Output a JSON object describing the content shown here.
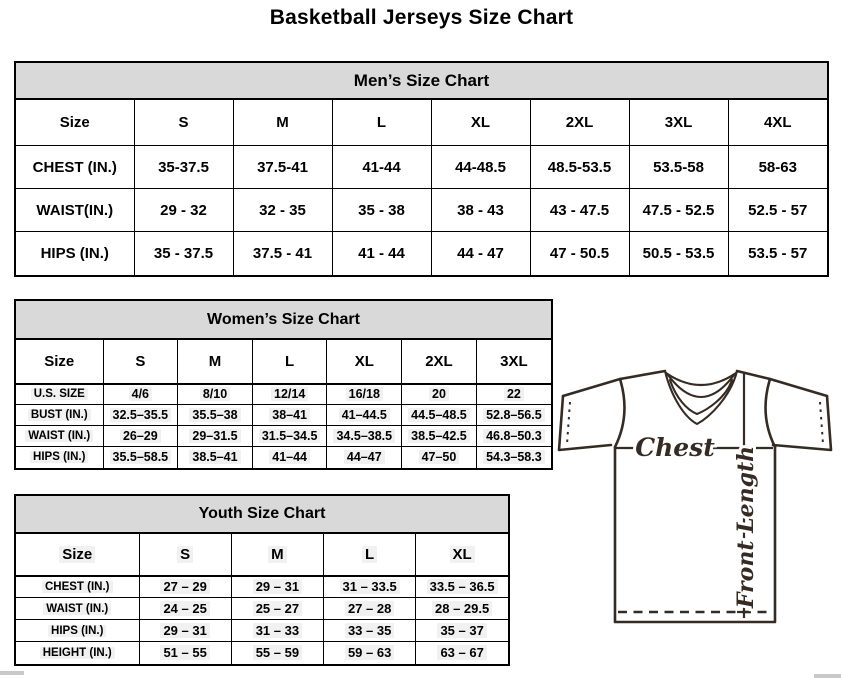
{
  "page": {
    "title": "Basketball Jerseys Size Chart"
  },
  "mens": {
    "title": "Men’s Size Chart",
    "columns": [
      "Size",
      "S",
      "M",
      "L",
      "XL",
      "2XL",
      "3XL",
      "4XL"
    ],
    "rows": [
      {
        "label": "CHEST (IN.)",
        "values": [
          "35-37.5",
          "37.5-41",
          "41-44",
          "44-48.5",
          "48.5-53.5",
          "53.5-58",
          "58-63"
        ]
      },
      {
        "label": "WAIST(IN.)",
        "values": [
          "29 - 32",
          "32 - 35",
          "35 - 38",
          "38 - 43",
          "43 - 47.5",
          "47.5 - 52.5",
          "52.5 - 57"
        ]
      },
      {
        "label": "HIPS (IN.)",
        "values": [
          "35 - 37.5",
          "37.5 - 41",
          "41 - 44",
          "44 - 47",
          "47 - 50.5",
          "50.5 - 53.5",
          "53.5 - 57"
        ]
      }
    ]
  },
  "womens": {
    "title": "Women’s Size Chart",
    "columns": [
      "Size",
      "S",
      "M",
      "L",
      "XL",
      "2XL",
      "3XL"
    ],
    "rows": [
      {
        "label": "U.S. SIZE",
        "values": [
          "4/6",
          "8/10",
          "12/14",
          "16/18",
          "20",
          "22"
        ]
      },
      {
        "label": "BUST (IN.)",
        "values": [
          "32.5–35.5",
          "35.5–38",
          "38–41",
          "41–44.5",
          "44.5–48.5",
          "52.8–56.5"
        ]
      },
      {
        "label": "WAIST (IN.)",
        "values": [
          "26–29",
          "29–31.5",
          "31.5–34.5",
          "34.5–38.5",
          "38.5–42.5",
          "46.8–50.3"
        ]
      },
      {
        "label": "HIPS (IN.)",
        "values": [
          "35.5–58.5",
          "38.5–41",
          "41–44",
          "44–47",
          "47–50",
          "54.3–58.3"
        ]
      }
    ]
  },
  "youth": {
    "title": "Youth Size Chart",
    "columns": [
      "Size",
      "S",
      "M",
      "L",
      "XL"
    ],
    "rows": [
      {
        "label": "CHEST (IN.)",
        "values": [
          "27 – 29",
          "29 – 31",
          "31 – 33.5",
          "33.5 – 36.5"
        ]
      },
      {
        "label": "WAIST (IN.)",
        "values": [
          "24 – 25",
          "25 – 27",
          "27 – 28",
          "28 – 29.5"
        ]
      },
      {
        "label": "HIPS (IN.)",
        "values": [
          "29 – 31",
          "31 – 33",
          "33 – 35",
          "35 – 37"
        ]
      },
      {
        "label": "HEIGHT (IN.)",
        "values": [
          "51 – 55",
          "55 – 59",
          "59 – 63",
          "63 – 67"
        ]
      }
    ]
  },
  "diagram": {
    "chest_label": "Chest",
    "front_length_label": "Front Length"
  },
  "colors": {
    "table_header_bg": "#d9d9d9",
    "cell_highlight": "#f1f1f1",
    "table_border": "#000000",
    "jersey_stroke": "#362b22"
  }
}
